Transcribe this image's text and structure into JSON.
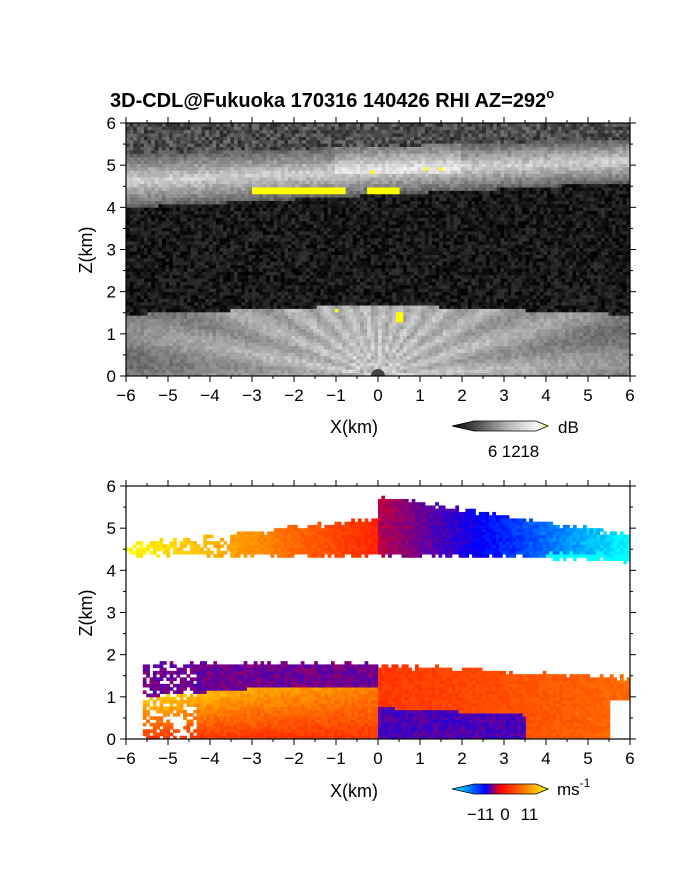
{
  "title_main": "3D-CDL@Fukuoka 170316 140426 RHI AZ=292",
  "title_sup": "o",
  "chart_data": [
    {
      "type": "heatmap",
      "quantity": "backscatter intensity",
      "xlabel": "X(km)",
      "ylabel": "Z(km)",
      "xlim": [
        -6,
        6
      ],
      "ylim": [
        0,
        6
      ],
      "x_ticks": [
        "-6",
        "-5",
        "-4",
        "-3",
        "-2",
        "-1",
        "0",
        "1",
        "2",
        "3",
        "4",
        "5",
        "6"
      ],
      "y_ticks": [
        "0",
        "1",
        "2",
        "3",
        "4",
        "5",
        "6"
      ],
      "colorbar": {
        "unit": "dB",
        "ticks": [
          "6",
          "12",
          "18"
        ],
        "range": [
          0,
          20
        ],
        "colors": [
          "#000000",
          "#ffffff",
          "#ffff00"
        ]
      },
      "layers": [
        {
          "z_range": [
            0,
            1.8
          ],
          "feature": "bright boundary layer with radial streaks from origin",
          "value_db": [
            8,
            16
          ]
        },
        {
          "z_range": [
            1.8,
            4.2
          ],
          "feature": "noise",
          "value_db": [
            0,
            4
          ]
        },
        {
          "z_range": [
            4.2,
            5.6
          ],
          "feature": "bright cloud layer",
          "value_db": [
            8,
            18
          ]
        }
      ],
      "hotspots": [
        {
          "x": [
            -3.0,
            -0.8
          ],
          "z": [
            4.35,
            4.45
          ],
          "value_db": 20
        },
        {
          "x": [
            -0.3,
            0.5
          ],
          "z": [
            4.3,
            4.45
          ],
          "value_db": 20
        },
        {
          "x": [
            0.4,
            0.6
          ],
          "z": [
            1.3,
            1.55
          ],
          "value_db": 20
        },
        {
          "x": [
            -1.05,
            -0.95
          ],
          "z": [
            1.5,
            1.6
          ],
          "value_db": 20
        }
      ]
    },
    {
      "type": "heatmap",
      "quantity": "radial velocity",
      "xlabel": "X(km)",
      "ylabel": "Z(km)",
      "xlim": [
        -6,
        6
      ],
      "ylim": [
        0,
        6
      ],
      "x_ticks": [
        "-6",
        "-5",
        "-4",
        "-3",
        "-2",
        "-1",
        "0",
        "1",
        "2",
        "3",
        "4",
        "5",
        "6"
      ],
      "y_ticks": [
        "0",
        "1",
        "2",
        "3",
        "4",
        "5",
        "6"
      ],
      "colorbar": {
        "unit": "ms",
        "unit_sup": "-1",
        "ticks": [
          "-11",
          "0",
          "11"
        ],
        "range": [
          -14,
          14
        ],
        "colors": [
          "#00ffff",
          "#0000ff",
          "#ff0000",
          "#ffff00"
        ]
      },
      "regions": [
        {
          "name": "upper layer west",
          "x": [
            -6,
            0
          ],
          "z": [
            4.3,
            5.5
          ],
          "velocity_ms": [
            14,
            2
          ]
        },
        {
          "name": "upper layer east",
          "x": [
            0,
            6
          ],
          "z": [
            4.2,
            5.7
          ],
          "velocity_ms": [
            -2,
            -14
          ]
        },
        {
          "name": "lower layer top west",
          "x": [
            -5.5,
            0
          ],
          "z": [
            1.2,
            1.85
          ],
          "velocity_ms": -3
        },
        {
          "name": "lower layer bottom west",
          "x": [
            -5.5,
            0
          ],
          "z": [
            0,
            1.2
          ],
          "velocity_ms": [
            3,
            10
          ]
        },
        {
          "name": "lower layer top east",
          "x": [
            0,
            6
          ],
          "z": [
            0.7,
            1.75
          ],
          "velocity_ms": [
            2,
            6
          ]
        },
        {
          "name": "lower layer bottom east",
          "x": [
            0,
            3.5
          ],
          "z": [
            0,
            0.7
          ],
          "velocity_ms": -5
        }
      ]
    }
  ]
}
